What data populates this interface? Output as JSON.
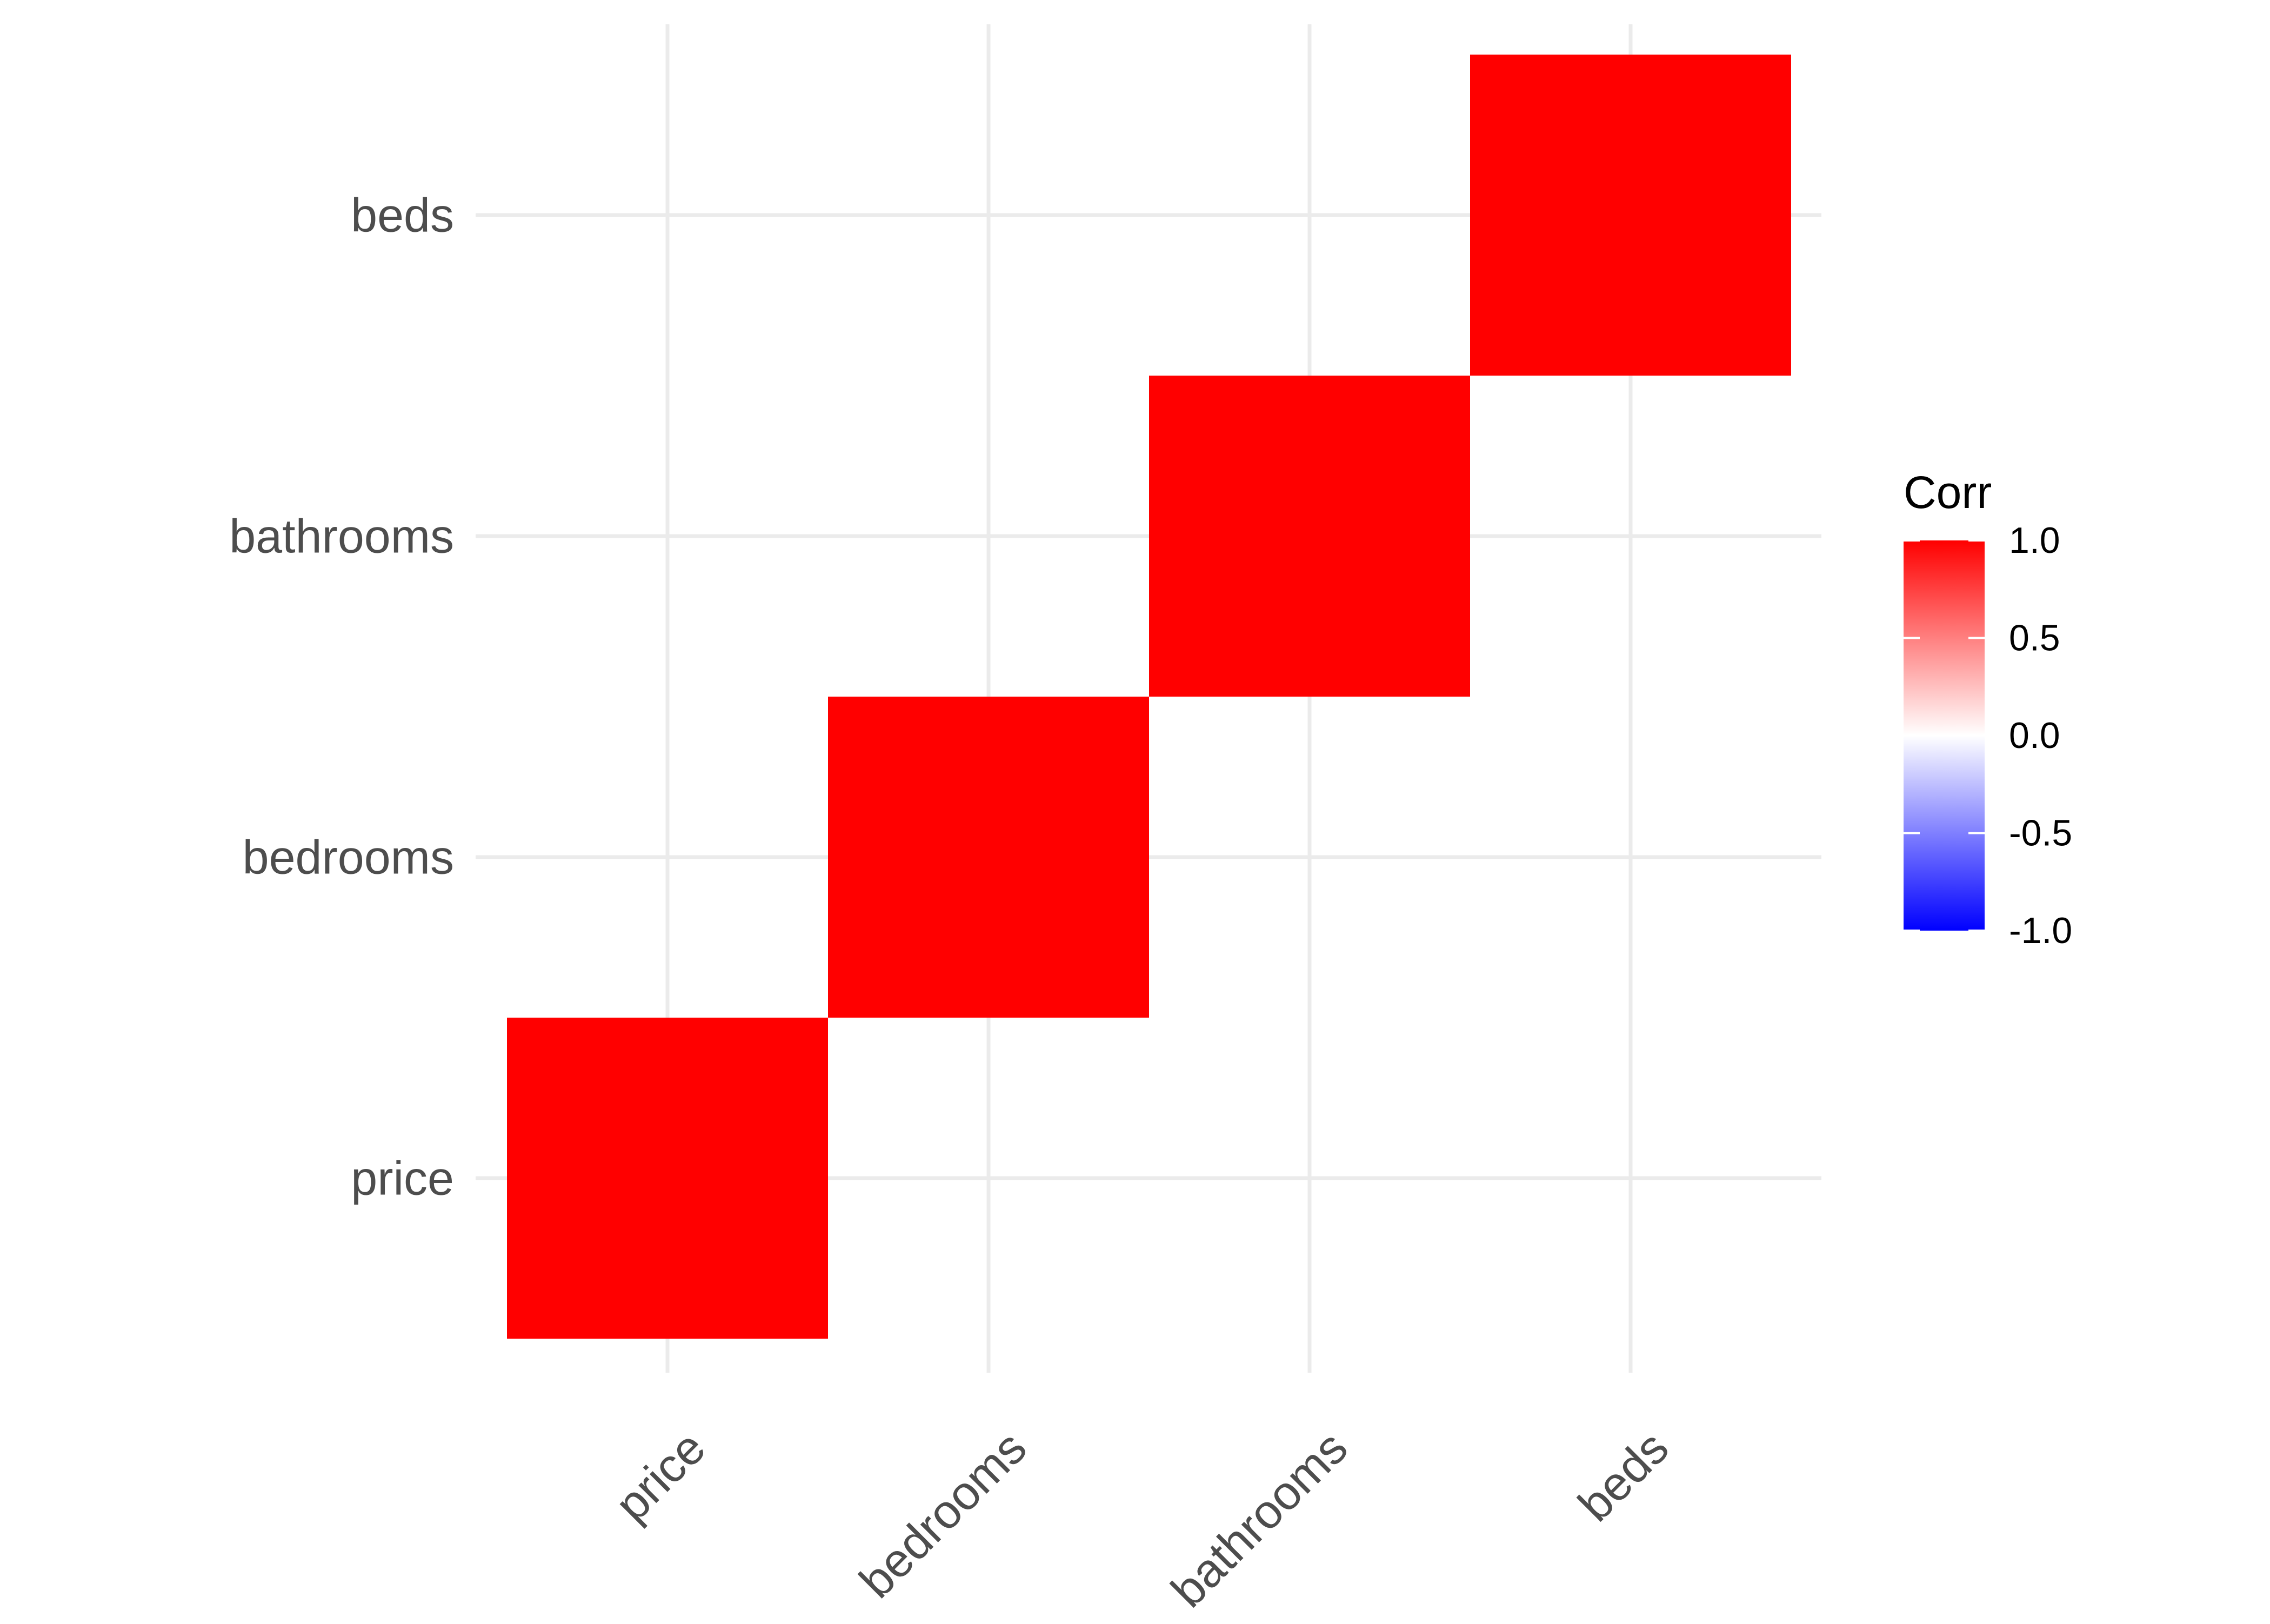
{
  "chart_data": {
    "type": "heatmap",
    "x_categories": [
      "price",
      "bedrooms",
      "bathrooms",
      "beds"
    ],
    "y_categories": [
      "price",
      "bedrooms",
      "bathrooms",
      "beds"
    ],
    "cells": [
      {
        "x": "price",
        "y": "price",
        "value": 1.0
      },
      {
        "x": "bedrooms",
        "y": "bedrooms",
        "value": 1.0
      },
      {
        "x": "bathrooms",
        "y": "bathrooms",
        "value": 1.0
      },
      {
        "x": "beds",
        "y": "beds",
        "value": 1.0
      }
    ],
    "legend": {
      "title": "Corr",
      "breaks": [
        1.0,
        0.5,
        0.0,
        -0.5,
        -1.0
      ],
      "labels": [
        "1.0",
        "0.5",
        "0.0",
        "-0.5",
        "-1.0"
      ],
      "limits": [
        -1.0,
        1.0
      ],
      "low_color": "#0000ff",
      "mid_color": "#ffffff",
      "high_color": "#ff0000",
      "placement": "right"
    },
    "grid": true,
    "x_tick_rotation_deg": 45
  }
}
